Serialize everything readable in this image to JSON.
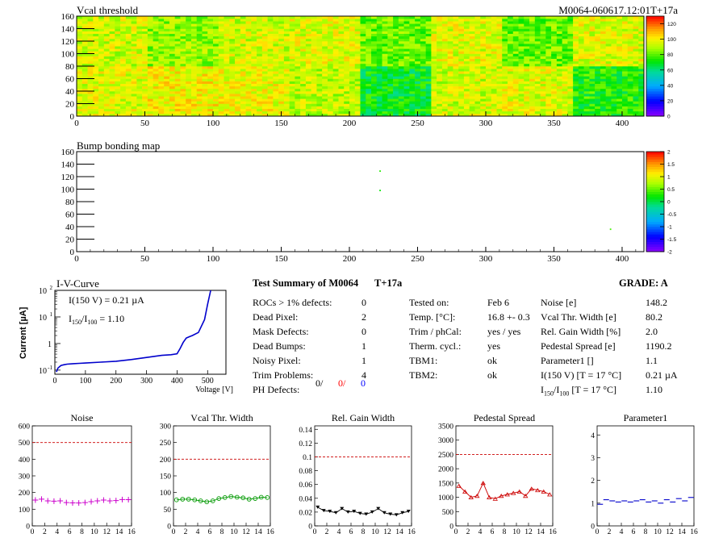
{
  "maps": {
    "vcal": {
      "title": "Vcal threshold",
      "id_label": "M0064-060617.12:01T+17a",
      "palette_ticks": [
        "0",
        "20",
        "40",
        "60",
        "80",
        "100",
        "120"
      ]
    },
    "bump": {
      "title": "Bump bonding map",
      "palette_ticks": [
        "-2",
        "-1.5",
        "-1",
        "-0.5",
        "0",
        "0.5",
        "1",
        "1.5",
        "2"
      ]
    },
    "x_ticks": [
      "0",
      "50",
      "100",
      "150",
      "200",
      "250",
      "300",
      "350",
      "400"
    ],
    "y_ticks": [
      "0",
      "20",
      "40",
      "60",
      "80",
      "100",
      "120",
      "140",
      "160"
    ]
  },
  "iv": {
    "title": "I-V-Curve",
    "ylabel": "Current [µA]",
    "xlabel": "Voltage [V]",
    "note1": "I(150 V) = 0.21 µA",
    "note2_main": "I",
    "note2_sub1": "150",
    "note2_mid": "/I",
    "note2_sub2": "100",
    "note2_val": " = 1.10",
    "x_ticks": [
      "0",
      "100",
      "200",
      "300",
      "400",
      "500"
    ]
  },
  "summary": {
    "title": "Test Summary of M0064",
    "id": "T+17a",
    "grade": "GRADE:  A",
    "rows": [
      {
        "label": "ROCs > 1% defects:",
        "value": "0"
      },
      {
        "label": "Dead Pixel:",
        "value": "2"
      },
      {
        "label": "Mask Defects:",
        "value": "0"
      },
      {
        "label": "Dead Bumps:",
        "value": "1"
      },
      {
        "label": "Noisy Pixel:",
        "value": "1"
      },
      {
        "label": "Trim Problems:",
        "value": "4"
      }
    ],
    "ph_label": "PH Defects:",
    "ph_v1": "0/",
    "ph_v2": "0/",
    "ph_v3": "0",
    "ph_colors": [
      "#000000",
      "#ff0000",
      "#0000ff"
    ],
    "tests": [
      {
        "label": "Tested on:",
        "value": "Feb 6"
      },
      {
        "label": "Temp. [°C]:",
        "value": "16.8 +- 0.3"
      },
      {
        "label": "Trim / phCal:",
        "value": "yes / yes"
      },
      {
        "label": "Therm. cycl.:",
        "value": "yes"
      },
      {
        "label": "TBM1:",
        "value": "ok"
      },
      {
        "label": "TBM2:",
        "value": "ok"
      }
    ],
    "params": [
      {
        "label": "Noise [e]",
        "value": "148.2"
      },
      {
        "label": "Vcal Thr. Width [e]",
        "value": "80.2"
      },
      {
        "label": "Rel. Gain Width [%]",
        "value": "2.0"
      },
      {
        "label": "Pedestal Spread [e]",
        "value": "1190.2"
      },
      {
        "label": "Parameter1 []",
        "value": "1.1"
      },
      {
        "label": "I(150 V) [T = 17 °C]",
        "value": "0.21 µA"
      }
    ],
    "last_param_main": "I",
    "last_param_sub1": "150",
    "last_param_mid": "/I",
    "last_param_sub2": "100",
    "last_param_tail": "  [T = 17 °C]",
    "last_param_value": "1.10"
  },
  "chart_data": [
    {
      "type": "heatmap",
      "title": "Vcal threshold",
      "subtitle": "M0064-060617.12:01T+17a",
      "xlim": [
        0,
        416
      ],
      "ylim": [
        0,
        160
      ],
      "zlim": [
        0,
        130
      ],
      "roc_means": [
        [
          96,
          100,
          98,
          92,
          70,
          94,
          96,
          74
        ],
        [
          94,
          86,
          94,
          96,
          82,
          96,
          82,
          96
        ]
      ]
    },
    {
      "type": "heatmap",
      "title": "Bump bonding map",
      "xlim": [
        0,
        416
      ],
      "ylim": [
        0,
        160
      ],
      "zlim": [
        -2,
        2
      ],
      "points": [
        {
          "x": 222,
          "y": 130,
          "z": 0.3
        },
        {
          "x": 222,
          "y": 99,
          "z": 0.2
        },
        {
          "x": 391,
          "y": 37,
          "z": 0.4
        }
      ]
    },
    {
      "type": "line",
      "title": "I-V-Curve",
      "xlabel": "Voltage [V]",
      "ylabel": "Current [µA]",
      "xlim": [
        0,
        560
      ],
      "ylim": [
        0.07,
        100
      ],
      "log_y": true,
      "x": [
        5,
        10,
        20,
        30,
        40,
        60,
        80,
        100,
        150,
        200,
        250,
        300,
        350,
        380,
        400,
        410,
        420,
        430,
        440,
        450,
        470,
        490,
        500,
        510
      ],
      "y": [
        0.085,
        0.12,
        0.15,
        0.16,
        0.168,
        0.175,
        0.18,
        0.185,
        0.2,
        0.215,
        0.25,
        0.3,
        0.36,
        0.38,
        0.41,
        0.65,
        1.1,
        1.6,
        1.8,
        2.0,
        2.6,
        8,
        30,
        110
      ],
      "color": "#0000cc"
    },
    {
      "type": "scatter",
      "title": "Noise",
      "xlim": [
        0,
        16
      ],
      "ylim": [
        0,
        600
      ],
      "x_ticks": [
        "0",
        "2",
        "4",
        "6",
        "8",
        "10",
        "12",
        "14",
        "16"
      ],
      "y_ticks": [
        "0",
        "100",
        "200",
        "300",
        "400",
        "500",
        "600"
      ],
      "values": [
        155,
        160,
        150,
        148,
        150,
        140,
        138,
        137,
        140,
        145,
        150,
        155,
        150,
        152,
        158,
        157
      ],
      "threshold": 500,
      "color": "#cc00cc",
      "marker": "plus"
    },
    {
      "type": "scatter",
      "title": "Vcal Thr. Width",
      "xlim": [
        0,
        16
      ],
      "ylim": [
        0,
        300
      ],
      "x_ticks": [
        "0",
        "2",
        "4",
        "6",
        "8",
        "10",
        "12",
        "14",
        "16"
      ],
      "y_ticks": [
        "0",
        "50",
        "100",
        "150",
        "200",
        "250",
        "300"
      ],
      "values": [
        78,
        80,
        80,
        78,
        75,
        72,
        75,
        82,
        85,
        88,
        86,
        84,
        80,
        82,
        86,
        85
      ],
      "threshold": 200,
      "color": "#009900",
      "marker": "circle"
    },
    {
      "type": "scatter",
      "title": "Rel. Gain Width",
      "xlim": [
        0,
        16
      ],
      "ylim": [
        0,
        0.145
      ],
      "x_ticks": [
        "0",
        "2",
        "4",
        "6",
        "8",
        "10",
        "12",
        "14",
        "16"
      ],
      "y_ticks": [
        "0",
        "0.02",
        "0.04",
        "0.06",
        "0.08",
        "0.1",
        "0.12",
        "0.14"
      ],
      "values": [
        0.027,
        0.022,
        0.021,
        0.019,
        0.025,
        0.02,
        0.021,
        0.018,
        0.017,
        0.02,
        0.025,
        0.019,
        0.017,
        0.016,
        0.019,
        0.021
      ],
      "threshold": 0.1,
      "color": "#000000",
      "marker": "triangle-down"
    },
    {
      "type": "scatter",
      "title": "Pedestal Spread",
      "xlim": [
        0,
        16
      ],
      "ylim": [
        0,
        3500
      ],
      "x_ticks": [
        "0",
        "2",
        "4",
        "6",
        "8",
        "10",
        "12",
        "14",
        "16"
      ],
      "y_ticks": [
        "0",
        "500",
        "1000",
        "1500",
        "2000",
        "2500",
        "3000",
        "3500"
      ],
      "values": [
        1400,
        1200,
        1000,
        1050,
        1500,
        1000,
        950,
        1050,
        1100,
        1150,
        1200,
        1050,
        1300,
        1250,
        1200,
        1100
      ],
      "threshold": 2500,
      "color": "#cc0000",
      "marker": "triangle-up"
    },
    {
      "type": "scatter",
      "title": "Parameter1",
      "xlim": [
        0,
        16
      ],
      "ylim": [
        0,
        4.4
      ],
      "x_ticks": [
        "0",
        "2",
        "4",
        "6",
        "8",
        "10",
        "12",
        "14",
        "16"
      ],
      "y_ticks": [
        "0",
        "1",
        "2",
        "3",
        "4"
      ],
      "values": [
        0.95,
        1.15,
        1.1,
        1.05,
        1.1,
        1.05,
        1.1,
        1.15,
        1.05,
        1.1,
        1.0,
        1.15,
        1.05,
        1.2,
        1.1,
        1.25
      ],
      "color": "#0000cc",
      "marker": "dash"
    }
  ]
}
